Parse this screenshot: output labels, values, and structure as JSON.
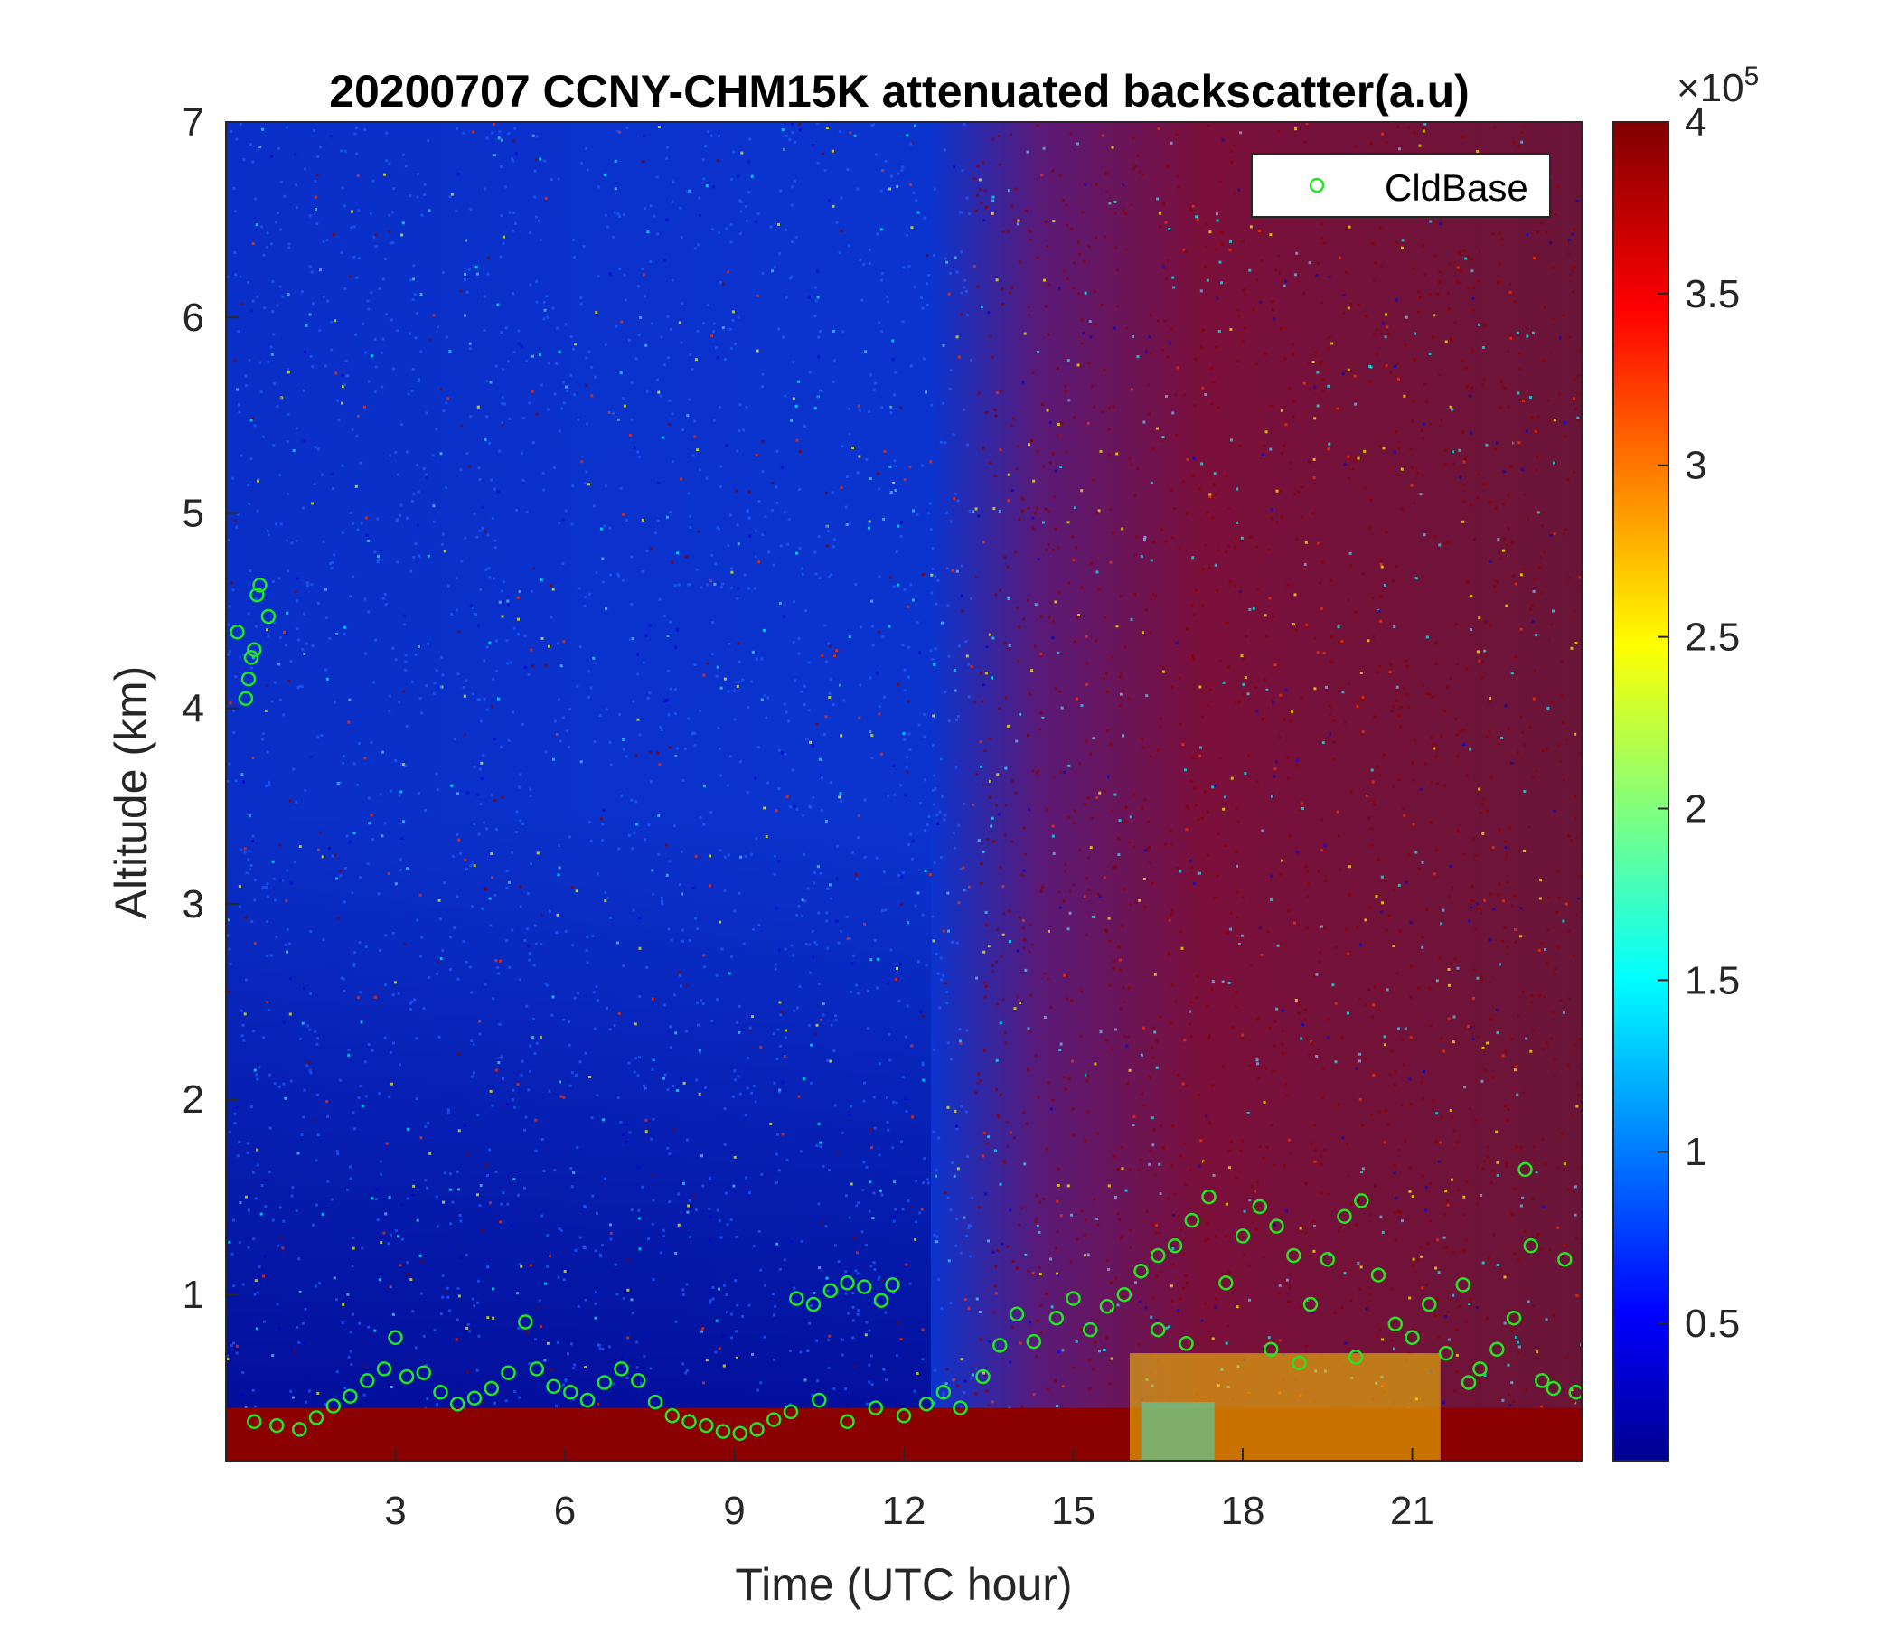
{
  "chart_data": {
    "type": "heatmap",
    "title": "20200707 CCNY-CHM15K attenuated backscatter(a.u)",
    "xlabel": "Time (UTC hour)",
    "ylabel": "Altitude (km)",
    "xlim": [
      0,
      24
    ],
    "ylim": [
      0.15,
      7
    ],
    "xticks": [
      3,
      6,
      9,
      12,
      15,
      18,
      21
    ],
    "yticks": [
      1,
      2,
      3,
      4,
      5,
      6,
      7
    ],
    "colorbar": {
      "colormap": "jet",
      "range": [
        10000,
        400000
      ],
      "ticks": [
        0.5,
        1,
        1.5,
        2,
        2.5,
        3,
        3.5,
        4
      ],
      "tick_labels": [
        "0.5",
        "1",
        "1.5",
        "2",
        "2.5",
        "3",
        "3.5",
        "4"
      ],
      "exponent_label": "×10",
      "exponent_power": "5"
    },
    "legend": {
      "position": "top-right",
      "entries": [
        "CldBase"
      ]
    },
    "series": [
      {
        "name": "CldBase",
        "marker": "circle",
        "color": "#22e622",
        "points": [
          [
            0.2,
            4.39
          ],
          [
            0.35,
            4.05
          ],
          [
            0.4,
            4.15
          ],
          [
            0.45,
            4.26
          ],
          [
            0.5,
            4.3
          ],
          [
            0.55,
            4.58
          ],
          [
            0.6,
            4.63
          ],
          [
            0.75,
            4.47
          ],
          [
            0.5,
            0.35
          ],
          [
            0.9,
            0.33
          ],
          [
            1.3,
            0.31
          ],
          [
            1.6,
            0.37
          ],
          [
            1.9,
            0.43
          ],
          [
            2.2,
            0.48
          ],
          [
            2.5,
            0.56
          ],
          [
            2.8,
            0.62
          ],
          [
            3.0,
            0.78
          ],
          [
            3.2,
            0.58
          ],
          [
            3.5,
            0.6
          ],
          [
            3.8,
            0.5
          ],
          [
            4.1,
            0.44
          ],
          [
            4.4,
            0.47
          ],
          [
            4.7,
            0.52
          ],
          [
            5.0,
            0.6
          ],
          [
            5.3,
            0.86
          ],
          [
            5.5,
            0.62
          ],
          [
            5.8,
            0.53
          ],
          [
            6.1,
            0.5
          ],
          [
            6.4,
            0.46
          ],
          [
            6.7,
            0.55
          ],
          [
            7.0,
            0.62
          ],
          [
            7.3,
            0.56
          ],
          [
            7.6,
            0.45
          ],
          [
            7.9,
            0.38
          ],
          [
            8.2,
            0.35
          ],
          [
            8.5,
            0.33
          ],
          [
            8.8,
            0.3
          ],
          [
            9.1,
            0.29
          ],
          [
            9.4,
            0.31
          ],
          [
            9.7,
            0.36
          ],
          [
            10.0,
            0.4
          ],
          [
            10.1,
            0.98
          ],
          [
            10.4,
            0.95
          ],
          [
            10.7,
            1.02
          ],
          [
            11.0,
            1.06
          ],
          [
            11.3,
            1.04
          ],
          [
            11.6,
            0.97
          ],
          [
            11.8,
            1.05
          ],
          [
            10.5,
            0.46
          ],
          [
            11.0,
            0.35
          ],
          [
            11.5,
            0.42
          ],
          [
            12.0,
            0.38
          ],
          [
            12.4,
            0.44
          ],
          [
            12.7,
            0.5
          ],
          [
            13.0,
            0.42
          ],
          [
            13.4,
            0.58
          ],
          [
            13.7,
            0.74
          ],
          [
            14.0,
            0.9
          ],
          [
            14.3,
            0.76
          ],
          [
            14.7,
            0.88
          ],
          [
            15.0,
            0.98
          ],
          [
            15.3,
            0.82
          ],
          [
            15.6,
            0.94
          ],
          [
            15.9,
            1.0
          ],
          [
            16.2,
            1.12
          ],
          [
            16.5,
            1.2
          ],
          [
            16.8,
            1.25
          ],
          [
            17.1,
            1.38
          ],
          [
            17.4,
            1.5
          ],
          [
            17.7,
            1.06
          ],
          [
            18.0,
            1.3
          ],
          [
            18.3,
            1.45
          ],
          [
            18.6,
            1.35
          ],
          [
            18.9,
            1.2
          ],
          [
            19.2,
            0.95
          ],
          [
            19.5,
            1.18
          ],
          [
            19.8,
            1.4
          ],
          [
            20.1,
            1.48
          ],
          [
            20.4,
            1.1
          ],
          [
            20.7,
            0.85
          ],
          [
            21.0,
            0.78
          ],
          [
            21.3,
            0.95
          ],
          [
            21.6,
            0.7
          ],
          [
            21.9,
            1.05
          ],
          [
            22.2,
            0.62
          ],
          [
            22.5,
            0.72
          ],
          [
            22.8,
            0.88
          ],
          [
            23.0,
            1.64
          ],
          [
            23.1,
            1.25
          ],
          [
            23.3,
            0.56
          ],
          [
            23.5,
            0.52
          ],
          [
            23.7,
            1.18
          ],
          [
            23.9,
            0.5
          ],
          [
            16.5,
            0.82
          ],
          [
            17.0,
            0.75
          ],
          [
            18.5,
            0.72
          ],
          [
            19.0,
            0.65
          ],
          [
            20.0,
            0.68
          ],
          [
            22.0,
            0.55
          ]
        ]
      }
    ]
  }
}
